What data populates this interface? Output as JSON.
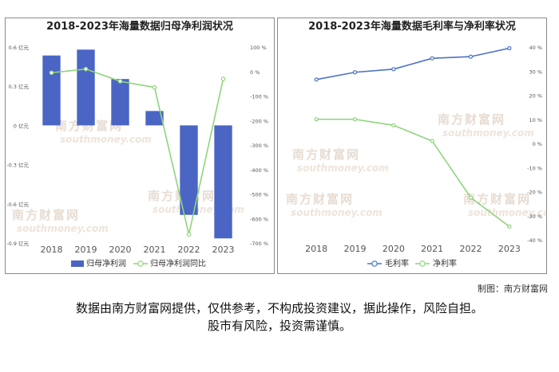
{
  "charts_meta": {
    "credit": "制图：南方财富网",
    "disclaimer_line1": "数据由南方财富网提供，仅供参考，不构成投资建议，据此操作，风险自担。",
    "disclaimer_line2": "股市有风险，投资需谨慎。",
    "watermark": "南方财富网 southmoney.com"
  },
  "chart_data": [
    {
      "type": "bar",
      "title": "2018-2023年海量数据归母净利润状况",
      "categories": [
        "2018",
        "2019",
        "2020",
        "2021",
        "2022",
        "2023"
      ],
      "series": [
        {
          "name": "归母净利润",
          "kind": "bar",
          "axis": "left",
          "color": "#4a65c4",
          "values": [
            0.535,
            0.58,
            0.355,
            0.11,
            -0.685,
            -0.865
          ]
        },
        {
          "name": "归母净利润同比",
          "kind": "line",
          "axis": "right",
          "color": "#8fd47c",
          "values": [
            -5,
            10,
            -40,
            -65,
            -665,
            -30
          ]
        }
      ],
      "left_axis": {
        "ticks": [
          0.6,
          0.3,
          0,
          -0.3,
          -0.6,
          -0.9
        ],
        "tick_labels": [
          "0.6 亿元",
          "0.3 亿元",
          "0 亿元",
          "-0.3 亿元",
          "-0.6 亿元",
          "-0.9 亿元"
        ],
        "ylim": [
          -0.9,
          0.6
        ]
      },
      "right_axis": {
        "ticks": [
          100,
          0,
          -100,
          -200,
          -300,
          -400,
          -500,
          -600,
          -700
        ],
        "tick_labels": [
          "100 %",
          "0 %",
          "-100 %",
          "-200 %",
          "-300 %",
          "-400 %",
          "-500 %",
          "-600 %",
          "-700 %"
        ],
        "ylim": [
          -700,
          100
        ]
      },
      "legend": [
        "归母净利润",
        "归母净利润同比"
      ],
      "legend_position": "bottom",
      "grid": false
    },
    {
      "type": "line",
      "title": "2018-2023年海量数据毛利率与净利率状况",
      "categories": [
        "2018",
        "2019",
        "2020",
        "2021",
        "2022",
        "2023"
      ],
      "series": [
        {
          "name": "毛利率",
          "color": "#4a72c4",
          "values": [
            26.5,
            29.5,
            30.8,
            35.3,
            36.0,
            39.5
          ]
        },
        {
          "name": "净利率",
          "color": "#8fd47c",
          "values": [
            10,
            10,
            7.5,
            1,
            -22.5,
            -34.5
          ]
        }
      ],
      "right_axis": {
        "ticks": [
          40,
          30,
          20,
          10,
          0,
          -10,
          -20,
          -30,
          -40
        ],
        "tick_labels": [
          "40 %",
          "30 %",
          "20 %",
          "10 %",
          "0 %",
          "-10 %",
          "-20 %",
          "-30 %",
          "-40 %"
        ],
        "ylim": [
          -40,
          40
        ]
      },
      "legend": [
        "毛利率",
        "净利率"
      ],
      "legend_position": "bottom",
      "grid": false
    }
  ]
}
